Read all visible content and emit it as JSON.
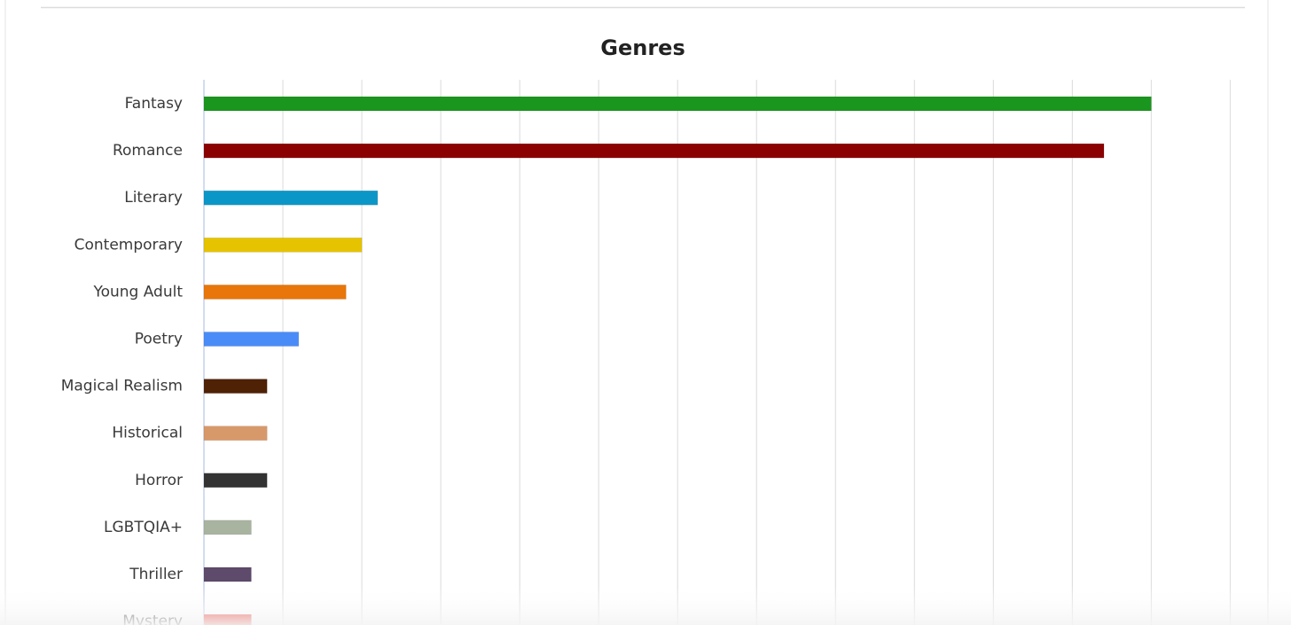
{
  "chart_data": {
    "type": "barh",
    "title": "Genres",
    "categories": [
      "Fantasy",
      "Romance",
      "Literary",
      "Contemporary",
      "Young Adult",
      "Poetry",
      "Magical Realism",
      "Historical",
      "Horror",
      "LGBTQIA+",
      "Thriller",
      "Mystery"
    ],
    "values": [
      60,
      57,
      11,
      10,
      9,
      6,
      4,
      4,
      4,
      3,
      3,
      3
    ],
    "colors": [
      "#1a961e",
      "#8b0000",
      "#0b96c8",
      "#e6c300",
      "#e8760a",
      "#4a8cf7",
      "#4f2105",
      "#d8996a",
      "#333333",
      "#a8b4a0",
      "#5e4a6b",
      "#e8352b"
    ],
    "xlim": [
      0,
      65
    ],
    "xticks": [
      0,
      5,
      10,
      15,
      20,
      25,
      30,
      35,
      40,
      45,
      50,
      55,
      60,
      65
    ],
    "grid": true
  }
}
